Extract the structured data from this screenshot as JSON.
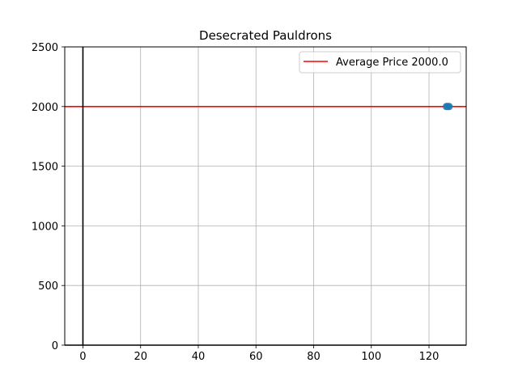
{
  "chart_data": {
    "type": "scatter",
    "title": "Desecrated Pauldrons",
    "xlabel": "",
    "ylabel": "",
    "xlim": [
      -6.3,
      132.9
    ],
    "ylim": [
      0,
      2500
    ],
    "x_ticks": [
      0,
      20,
      40,
      60,
      80,
      100,
      120
    ],
    "y_ticks": [
      0,
      500,
      1000,
      1500,
      2000,
      2500
    ],
    "grid": true,
    "legend_position": "top-right",
    "reference_lines": {
      "horizontal": {
        "y": 2000.0,
        "label": "Average Price 2000.0",
        "color": "#ff0000"
      },
      "vertical": {
        "x": 0,
        "color": "#000000"
      },
      "horizontal_zero": {
        "y": 0,
        "color": "#000000"
      }
    },
    "series": [
      {
        "color": "#1f77b4",
        "points": [
          {
            "x": 126,
            "y": 2000
          },
          {
            "x": 126.5,
            "y": 2000
          },
          {
            "x": 127,
            "y": 2000
          }
        ]
      }
    ]
  }
}
